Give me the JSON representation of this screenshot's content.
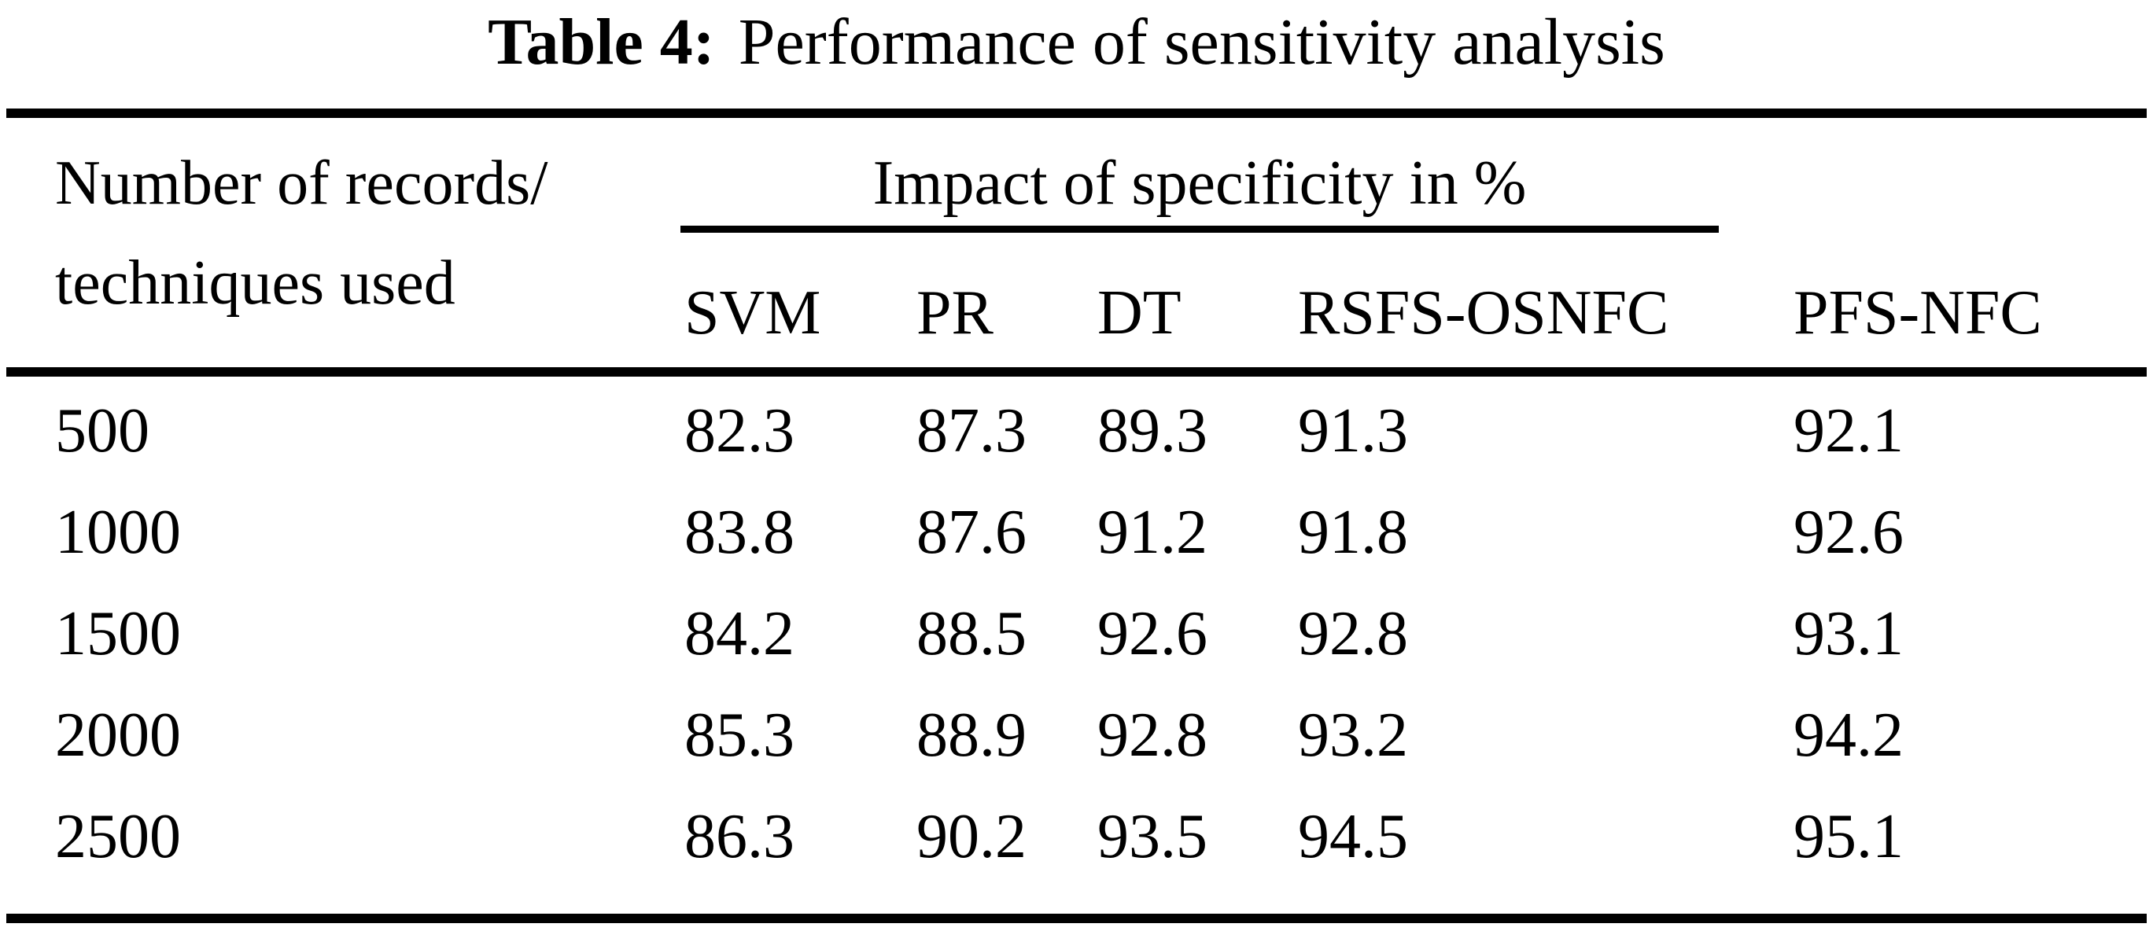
{
  "table": {
    "caption": {
      "label": "Table 4:",
      "text": "Performance of sensitivity analysis"
    },
    "stub_header": {
      "line1": "Number of records/",
      "line2": "techniques used"
    },
    "span_header": "Impact of specificity in %",
    "columns": [
      "SVM",
      "PR",
      "DT",
      "RSFS-OSNFC",
      "PFS-NFC"
    ],
    "rows": [
      {
        "label": "500",
        "values": [
          "82.3",
          "87.3",
          "89.3",
          "91.3",
          "92.1"
        ]
      },
      {
        "label": "1000",
        "values": [
          "83.8",
          "87.6",
          "91.2",
          "91.8",
          "92.6"
        ]
      },
      {
        "label": "1500",
        "values": [
          "84.2",
          "88.5",
          "92.6",
          "92.8",
          "93.1"
        ]
      },
      {
        "label": "2000",
        "values": [
          "85.3",
          "88.9",
          "92.8",
          "93.2",
          "94.2"
        ]
      },
      {
        "label": "2500",
        "values": [
          "86.3",
          "90.2",
          "93.5",
          "94.5",
          "95.1"
        ]
      }
    ]
  },
  "colors": {
    "text": "#000000",
    "background": "#ffffff",
    "rule": "#000000"
  }
}
